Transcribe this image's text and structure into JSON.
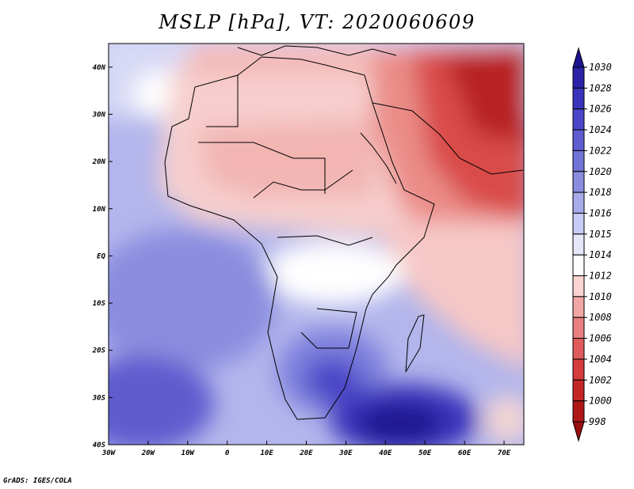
{
  "title": "MSLP [hPa], VT: 2020060609",
  "footer": "GrADS: IGES/COLA",
  "map": {
    "lon_range": [
      -30,
      75
    ],
    "lat_range": [
      -40,
      45
    ],
    "lon_ticks": [
      {
        "value": -30,
        "label": "30W"
      },
      {
        "value": -20,
        "label": "20W"
      },
      {
        "value": -10,
        "label": "10W"
      },
      {
        "value": 0,
        "label": "0"
      },
      {
        "value": 10,
        "label": "10E"
      },
      {
        "value": 20,
        "label": "20E"
      },
      {
        "value": 30,
        "label": "30E"
      },
      {
        "value": 40,
        "label": "40E"
      },
      {
        "value": 50,
        "label": "50E"
      },
      {
        "value": 60,
        "label": "60E"
      },
      {
        "value": 70,
        "label": "70E"
      }
    ],
    "lat_ticks": [
      {
        "value": 40,
        "label": "40N"
      },
      {
        "value": 30,
        "label": "30N"
      },
      {
        "value": 20,
        "label": "20N"
      },
      {
        "value": 10,
        "label": "10N"
      },
      {
        "value": 0,
        "label": "EQ"
      },
      {
        "value": -10,
        "label": "10S"
      },
      {
        "value": -20,
        "label": "20S"
      },
      {
        "value": -30,
        "label": "30S"
      },
      {
        "value": -40,
        "label": "40S"
      }
    ]
  },
  "colorbar": {
    "labels": [
      "1030",
      "1028",
      "1026",
      "1024",
      "1022",
      "1020",
      "1018",
      "1016",
      "1015",
      "1014",
      "1012",
      "1010",
      "1008",
      "1006",
      "1004",
      "1002",
      "1000",
      "998"
    ],
    "colors": [
      "#1e1490",
      "#2b22a8",
      "#3a34bc",
      "#4b47c8",
      "#5e5ccf",
      "#7273d6",
      "#8a8ddf",
      "#a7abe9",
      "#c8cbf3",
      "#e6e7f9",
      "#ffffff",
      "#f9d4d2",
      "#f1a8a5",
      "#e88080",
      "#e05c5c",
      "#d53c3c",
      "#c42626",
      "#b01818",
      "#9a1010"
    ]
  }
}
